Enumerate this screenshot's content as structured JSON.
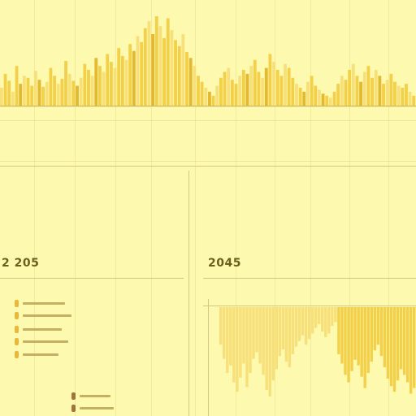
{
  "left_panel": {
    "year": "2 205"
  },
  "right_panel": {
    "year": "2045"
  },
  "colors": {
    "background": "#fdfab0",
    "bar": "#f3d04a",
    "bar_light": "#f7e07a",
    "bar_dark": "#e2b930",
    "text_placeholder": "#b6a75c",
    "legend_gold": "#e8b83a",
    "legend_brown": "#a0743a"
  },
  "chart_data": [
    {
      "type": "bar",
      "values": [
        18,
        32,
        25,
        14,
        40,
        22,
        30,
        28,
        20,
        35,
        26,
        19,
        24,
        38,
        30,
        22,
        27,
        45,
        32,
        25,
        20,
        28,
        42,
        36,
        30,
        48,
        40,
        34,
        52,
        44,
        38,
        58,
        50,
        46,
        62,
        55,
        70,
        64,
        78,
        85,
        72,
        90,
        80,
        68,
        88,
        76,
        66,
        60,
        72,
        54,
        48,
        40,
        30,
        24,
        18,
        14,
        10,
        20,
        28,
        34,
        38,
        26,
        22,
        30,
        36,
        32,
        40,
        46,
        34,
        28,
        38,
        52,
        44,
        36,
        30,
        42,
        38,
        28,
        22,
        18,
        14,
        24,
        30,
        20,
        16,
        12,
        10,
        8,
        14,
        22,
        30,
        26,
        36,
        42,
        30,
        24,
        34,
        40,
        28,
        36,
        30,
        22,
        26,
        32,
        24,
        20,
        18,
        22,
        14,
        10
      ]
    },
    {
      "type": "bar",
      "orientation": "down",
      "values": [
        40,
        55,
        70,
        62,
        80,
        90,
        75,
        60,
        85,
        70,
        55,
        48,
        60,
        72,
        88,
        95,
        78,
        66,
        52,
        45,
        58,
        64,
        50,
        42,
        36,
        30,
        40,
        34,
        28,
        22,
        18,
        26,
        32,
        28,
        20,
        16,
        50,
        60,
        72,
        80,
        68,
        56,
        62,
        74,
        86,
        70,
        58,
        46,
        40,
        52,
        64,
        76,
        84,
        90,
        78,
        66,
        72,
        80,
        92,
        86
      ]
    }
  ]
}
